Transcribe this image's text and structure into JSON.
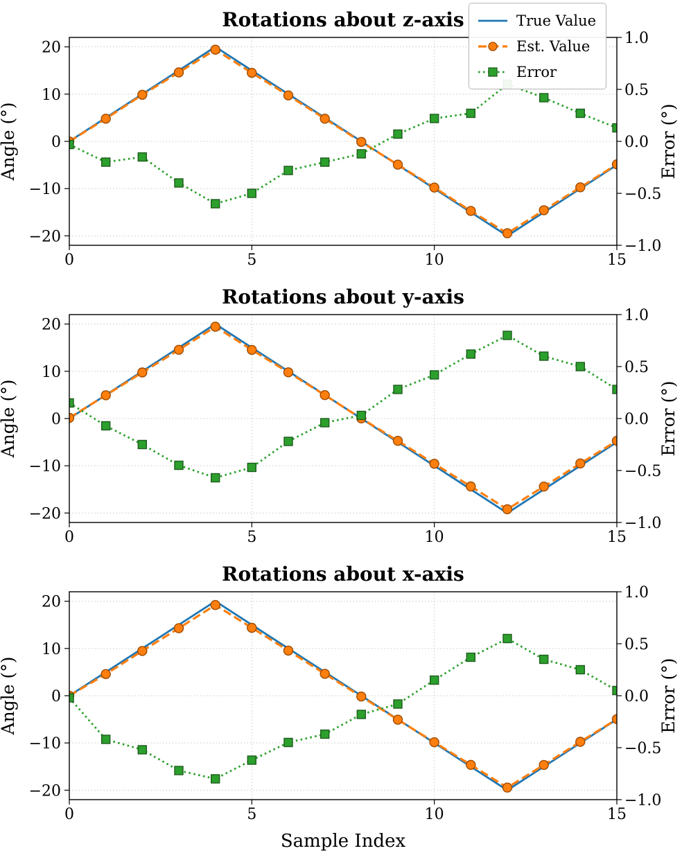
{
  "style": {
    "axis_color": "#000000",
    "grid_color": "#c9c9c9",
    "background": "#ffffff"
  },
  "legend": {
    "entries": [
      {
        "label": "True Value",
        "color": "#1f77b4",
        "line": "solid",
        "width": 2.8,
        "marker": "none",
        "marker_edge": ""
      },
      {
        "label": "Est. Value",
        "color": "#ff7f0e",
        "line": "dashed",
        "width": 3.2,
        "marker": "circle",
        "marker_edge": "#9c4a00"
      },
      {
        "label": "Error",
        "color": "#2ca02c",
        "line": "dotted",
        "width": 2.8,
        "marker": "square",
        "marker_edge": "#1e5c1e"
      }
    ]
  },
  "chart_data": [
    {
      "type": "line",
      "title": "Rotations about z-axis",
      "xlabel": "",
      "ylabel_left": "Angle (°)",
      "ylabel_right": "Error (°)",
      "xlim": [
        0,
        15
      ],
      "ylim_left": [
        -22,
        22
      ],
      "ylim_right": [
        -1.0,
        1.0
      ],
      "xticks": [
        0,
        5,
        10,
        15
      ],
      "xtick_labels": [
        "0",
        "5",
        "10",
        "15"
      ],
      "yticks_left": [
        -20,
        -10,
        0,
        10,
        20
      ],
      "ytick_labels_left": [
        "−20",
        "−10",
        "0",
        "10",
        "20"
      ],
      "yticks_right": [
        -1.0,
        -0.5,
        0.0,
        0.5,
        1.0
      ],
      "ytick_labels_right": [
        "−1.0",
        "−0.5",
        "0.0",
        "0.5",
        "1.0"
      ],
      "grid": true,
      "x": [
        0,
        1,
        2,
        3,
        4,
        5,
        6,
        7,
        8,
        9,
        10,
        11,
        12,
        13,
        14,
        15
      ],
      "series": [
        {
          "name": "True Value",
          "axis": "left",
          "color": "#1f77b4",
          "line": "solid",
          "width": 2.8,
          "marker": "none",
          "values": [
            0,
            5,
            10,
            15,
            20,
            15,
            10,
            5,
            0,
            -5,
            -10,
            -15,
            -20,
            -15,
            -10,
            -5
          ]
        },
        {
          "name": "Est. Value",
          "axis": "left",
          "color": "#ff7f0e",
          "line": "dashed",
          "width": 3.2,
          "marker": "circle",
          "marker_fill": "#ff7f0e",
          "marker_edge": "#9c4a00",
          "values": [
            -0.03,
            4.8,
            9.85,
            14.6,
            19.4,
            14.5,
            9.72,
            4.8,
            -0.12,
            -4.93,
            -9.78,
            -14.73,
            -19.45,
            -14.58,
            -9.73,
            -4.87
          ]
        },
        {
          "name": "Error",
          "axis": "right",
          "color": "#2ca02c",
          "line": "dotted",
          "width": 2.8,
          "marker": "square",
          "marker_fill": "#2ca02c",
          "marker_edge": "#1e5c1e",
          "values": [
            -0.03,
            -0.2,
            -0.15,
            -0.4,
            -0.6,
            -0.5,
            -0.28,
            -0.2,
            -0.12,
            0.07,
            0.22,
            0.27,
            0.55,
            0.42,
            0.27,
            0.13
          ]
        }
      ]
    },
    {
      "type": "line",
      "title": "Rotations about y-axis",
      "xlabel": "",
      "ylabel_left": "Angle (°)",
      "ylabel_right": "Error (°)",
      "xlim": [
        0,
        15
      ],
      "ylim_left": [
        -22,
        22
      ],
      "ylim_right": [
        -1.0,
        1.0
      ],
      "xticks": [
        0,
        5,
        10,
        15
      ],
      "xtick_labels": [
        "0",
        "5",
        "10",
        "15"
      ],
      "yticks_left": [
        -20,
        -10,
        0,
        10,
        20
      ],
      "ytick_labels_left": [
        "−20",
        "−10",
        "0",
        "10",
        "20"
      ],
      "yticks_right": [
        -1.0,
        -0.5,
        0.0,
        0.5,
        1.0
      ],
      "ytick_labels_right": [
        "−1.0",
        "−0.5",
        "0.0",
        "0.5",
        "1.0"
      ],
      "grid": true,
      "x": [
        0,
        1,
        2,
        3,
        4,
        5,
        6,
        7,
        8,
        9,
        10,
        11,
        12,
        13,
        14,
        15
      ],
      "series": [
        {
          "name": "True Value",
          "axis": "left",
          "color": "#1f77b4",
          "line": "solid",
          "width": 2.8,
          "marker": "none",
          "values": [
            0,
            5,
            10,
            15,
            20,
            15,
            10,
            5,
            0,
            -5,
            -10,
            -15,
            -20,
            -15,
            -10,
            -5
          ]
        },
        {
          "name": "Est. Value",
          "axis": "left",
          "color": "#ff7f0e",
          "line": "dashed",
          "width": 3.2,
          "marker": "circle",
          "marker_fill": "#ff7f0e",
          "marker_edge": "#9c4a00",
          "values": [
            0.15,
            4.93,
            9.75,
            14.55,
            19.43,
            14.53,
            9.78,
            4.96,
            0.03,
            -4.72,
            -9.58,
            -14.38,
            -19.2,
            -14.4,
            -9.5,
            -4.72
          ]
        },
        {
          "name": "Error",
          "axis": "right",
          "color": "#2ca02c",
          "line": "dotted",
          "width": 2.8,
          "marker": "square",
          "marker_fill": "#2ca02c",
          "marker_edge": "#1e5c1e",
          "values": [
            0.15,
            -0.07,
            -0.25,
            -0.45,
            -0.57,
            -0.47,
            -0.22,
            -0.04,
            0.03,
            0.28,
            0.42,
            0.62,
            0.8,
            0.6,
            0.5,
            0.28
          ]
        }
      ]
    },
    {
      "type": "line",
      "title": "Rotations about x-axis",
      "xlabel": "Sample Index",
      "ylabel_left": "Angle (°)",
      "ylabel_right": "Error (°)",
      "xlim": [
        0,
        15
      ],
      "ylim_left": [
        -22,
        22
      ],
      "ylim_right": [
        -1.0,
        1.0
      ],
      "xticks": [
        0,
        5,
        10,
        15
      ],
      "xtick_labels": [
        "0",
        "5",
        "10",
        "15"
      ],
      "yticks_left": [
        -20,
        -10,
        0,
        10,
        20
      ],
      "ytick_labels_left": [
        "−20",
        "−10",
        "0",
        "10",
        "20"
      ],
      "yticks_right": [
        -1.0,
        -0.5,
        0.0,
        0.5,
        1.0
      ],
      "ytick_labels_right": [
        "−1.0",
        "−0.5",
        "0.0",
        "0.5",
        "1.0"
      ],
      "grid": true,
      "x": [
        0,
        1,
        2,
        3,
        4,
        5,
        6,
        7,
        8,
        9,
        10,
        11,
        12,
        13,
        14,
        15
      ],
      "series": [
        {
          "name": "True Value",
          "axis": "left",
          "color": "#1f77b4",
          "line": "solid",
          "width": 2.8,
          "marker": "none",
          "values": [
            0,
            5,
            10,
            15,
            20,
            15,
            10,
            5,
            0,
            -5,
            -10,
            -15,
            -20,
            -15,
            -10,
            -5
          ]
        },
        {
          "name": "Est. Value",
          "axis": "left",
          "color": "#ff7f0e",
          "line": "dashed",
          "width": 3.2,
          "marker": "circle",
          "marker_fill": "#ff7f0e",
          "marker_edge": "#9c4a00",
          "values": [
            -0.02,
            4.58,
            9.48,
            14.28,
            19.2,
            14.38,
            9.55,
            4.63,
            -0.18,
            -5.08,
            -9.85,
            -14.63,
            -19.45,
            -14.65,
            -9.75,
            -4.95
          ]
        },
        {
          "name": "Error",
          "axis": "right",
          "color": "#2ca02c",
          "line": "dotted",
          "width": 2.8,
          "marker": "square",
          "marker_fill": "#2ca02c",
          "marker_edge": "#1e5c1e",
          "values": [
            -0.02,
            -0.42,
            -0.52,
            -0.72,
            -0.8,
            -0.62,
            -0.45,
            -0.37,
            -0.18,
            -0.08,
            0.15,
            0.37,
            0.55,
            0.35,
            0.25,
            0.05
          ]
        }
      ]
    }
  ]
}
